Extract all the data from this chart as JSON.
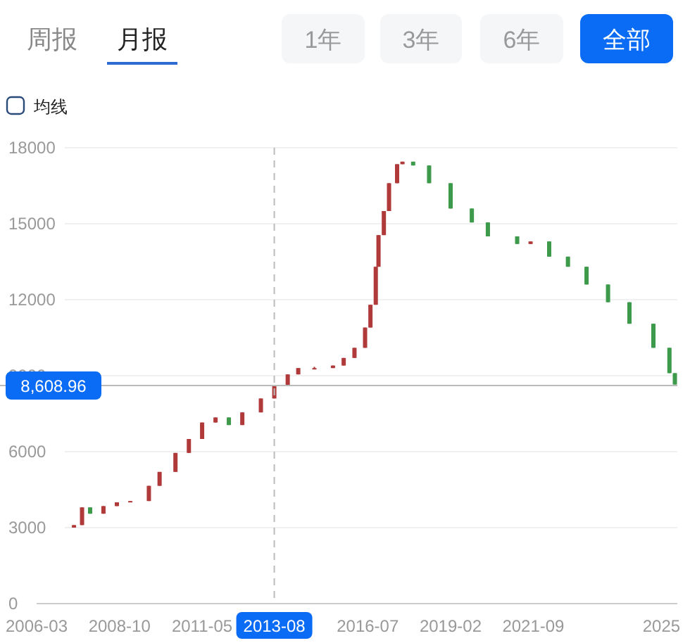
{
  "chart_data": {
    "type": "candlestick",
    "annotations": [
      "周报",
      "月报",
      "1年",
      "3年",
      "6年",
      "全部",
      "均线"
    ],
    "x": [
      "2007-05",
      "2007-08",
      "2007-11",
      "2008-04",
      "2008-09",
      "2009-02",
      "2009-09",
      "2010-01",
      "2010-07",
      "2010-12",
      "2011-05",
      "2011-10",
      "2012-03",
      "2012-08",
      "2013-03",
      "2013-08",
      "2014-01",
      "2014-05",
      "2014-11",
      "2015-06",
      "2015-10",
      "2016-02",
      "2016-06",
      "2016-08",
      "2016-10",
      "2016-11",
      "2017-01",
      "2017-03",
      "2017-06",
      "2017-08",
      "2017-12",
      "2018-06",
      "2019-02",
      "2019-10",
      "2020-04",
      "2021-03",
      "2021-08",
      "2022-03",
      "2022-10",
      "2023-05",
      "2024-01",
      "2024-09",
      "2025-06",
      "2025-12",
      "2026-02"
    ],
    "ohlc": [
      [
        3000,
        3100,
        3000,
        3100
      ],
      [
        3100,
        3800,
        3100,
        3800
      ],
      [
        3800,
        3800,
        3550,
        3550
      ],
      [
        3550,
        3850,
        3550,
        3850
      ],
      [
        3850,
        4000,
        3850,
        4000
      ],
      [
        4000,
        4050,
        4000,
        4050
      ],
      [
        4050,
        4650,
        4050,
        4650
      ],
      [
        4650,
        5200,
        4650,
        5200
      ],
      [
        5200,
        5950,
        5200,
        5950
      ],
      [
        5950,
        6500,
        5950,
        6500
      ],
      [
        6500,
        7150,
        6500,
        7150
      ],
      [
        7150,
        7350,
        7150,
        7350
      ],
      [
        7350,
        7350,
        7050,
        7050
      ],
      [
        7050,
        7550,
        7050,
        7550
      ],
      [
        7550,
        8100,
        7550,
        8100
      ],
      [
        8100,
        8600,
        8100,
        8600
      ],
      [
        8600,
        9050,
        8600,
        9050
      ],
      [
        9050,
        9300,
        9050,
        9300
      ],
      [
        9300,
        9350,
        9250,
        9300
      ],
      [
        9300,
        9400,
        9300,
        9400
      ],
      [
        9400,
        9700,
        9400,
        9700
      ],
      [
        9700,
        10100,
        9700,
        10100
      ],
      [
        10100,
        10900,
        10100,
        10900
      ],
      [
        10900,
        11800,
        10900,
        11800
      ],
      [
        11800,
        13300,
        11800,
        13300
      ],
      [
        13300,
        14550,
        13300,
        14550
      ],
      [
        14550,
        15500,
        14550,
        15500
      ],
      [
        15500,
        16600,
        15500,
        16600
      ],
      [
        16600,
        17350,
        16600,
        17350
      ],
      [
        17350,
        17450,
        17350,
        17450
      ],
      [
        17450,
        17450,
        17300,
        17300
      ],
      [
        17300,
        17300,
        16600,
        16600
      ],
      [
        16600,
        16600,
        15600,
        15600
      ],
      [
        15600,
        15600,
        15050,
        15050
      ],
      [
        15050,
        15050,
        14500,
        14500
      ],
      [
        14500,
        14500,
        14200,
        14200
      ],
      [
        14200,
        14300,
        14200,
        14300
      ],
      [
        14300,
        14300,
        13700,
        13700
      ],
      [
        13700,
        13700,
        13300,
        13300
      ],
      [
        13300,
        13300,
        12600,
        12600
      ],
      [
        12600,
        12600,
        11900,
        11900
      ],
      [
        11900,
        11900,
        11050,
        11050
      ],
      [
        11050,
        11050,
        10100,
        10100
      ],
      [
        10100,
        10100,
        9100,
        9100
      ],
      [
        9100,
        9100,
        8650,
        8650
      ]
    ],
    "colors": [
      "#b03a3a",
      "#b03a3a",
      "#3c9a4a",
      "#b03a3a",
      "#b03a3a",
      "#b03a3a",
      "#b03a3a",
      "#b03a3a",
      "#b03a3a",
      "#b03a3a",
      "#b03a3a",
      "#b03a3a",
      "#3c9a4a",
      "#b03a3a",
      "#b03a3a",
      "#b03a3a",
      "#b03a3a",
      "#b03a3a",
      "#b03a3a",
      "#b03a3a",
      "#b03a3a",
      "#b03a3a",
      "#b03a3a",
      "#b03a3a",
      "#b03a3a",
      "#b03a3a",
      "#b03a3a",
      "#b03a3a",
      "#b03a3a",
      "#b03a3a",
      "#3c9a4a",
      "#3c9a4a",
      "#3c9a4a",
      "#3c9a4a",
      "#3c9a4a",
      "#3c9a4a",
      "#b03a3a",
      "#3c9a4a",
      "#3c9a4a",
      "#3c9a4a",
      "#3c9a4a",
      "#3c9a4a",
      "#3c9a4a",
      "#3c9a4a",
      "#3c9a4a"
    ],
    "xlim": [
      "2006-03",
      "2026-03"
    ],
    "xticks": [
      {
        "value": "2006-03",
        "label": "2006-03"
      },
      {
        "value": "2008-10",
        "label": "2008-10"
      },
      {
        "value": "2011-05",
        "label": "2011-05"
      },
      {
        "value": "2016-07",
        "label": "2016-07"
      },
      {
        "value": "2019-02",
        "label": "2019-02"
      },
      {
        "value": "2021-09",
        "label": "2021-09"
      },
      {
        "value": "2025-09",
        "label": "2025"
      }
    ],
    "ylim": [
      0,
      18000
    ],
    "yticks": [
      0,
      3000,
      6000,
      9000,
      12000,
      15000,
      18000
    ],
    "grid": "y",
    "ref_lines": [
      {
        "axis": "x",
        "value": "2013-08",
        "label": "2013-08",
        "color": "#bbbbbb",
        "line_style": "dashed"
      },
      {
        "axis": "y",
        "value": 8608.96,
        "label": "8,608.96",
        "color": "#bbbbbb",
        "line_style": "solid"
      }
    ]
  }
}
